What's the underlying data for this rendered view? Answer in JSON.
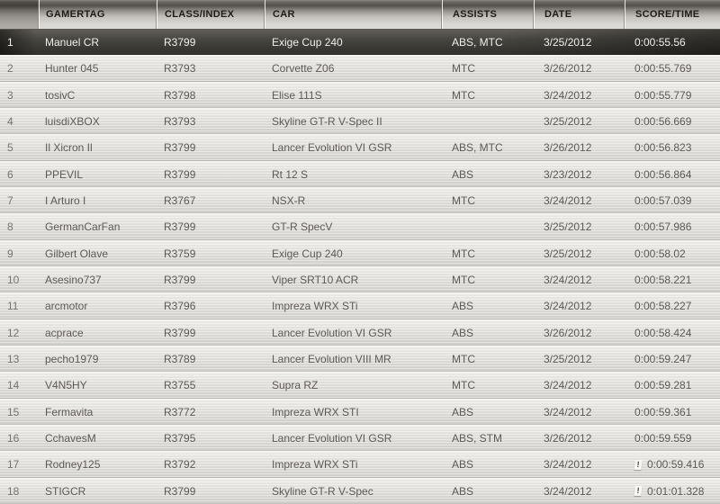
{
  "table": {
    "columns": [
      {
        "key": "rank",
        "label": ""
      },
      {
        "key": "gamertag",
        "label": "GAMERTAG"
      },
      {
        "key": "class_index",
        "label": "CLASS/INDEX"
      },
      {
        "key": "car",
        "label": "CAR"
      },
      {
        "key": "assists",
        "label": "ASSISTS"
      },
      {
        "key": "date",
        "label": "DATE"
      },
      {
        "key": "score",
        "label": "SCORE/TIME"
      }
    ],
    "rows": [
      {
        "rank": "1",
        "gamertag": "Manuel CR",
        "class_index": "R3799",
        "car": "Exige Cup 240",
        "assists": "ABS, MTC",
        "date": "3/25/2012",
        "score": "0:00:55.56",
        "dirty_lap": false,
        "selected": true
      },
      {
        "rank": "2",
        "gamertag": "Hunter 045",
        "class_index": "R3793",
        "car": "Corvette Z06",
        "assists": "MTC",
        "date": "3/26/2012",
        "score": "0:00:55.769",
        "dirty_lap": false,
        "selected": false
      },
      {
        "rank": "3",
        "gamertag": "tosivC",
        "class_index": "R3798",
        "car": "Elise 111S",
        "assists": "MTC",
        "date": "3/24/2012",
        "score": "0:00:55.779",
        "dirty_lap": false,
        "selected": false
      },
      {
        "rank": "4",
        "gamertag": "luisdiXBOX",
        "class_index": "R3793",
        "car": "Skyline GT-R V-Spec II",
        "assists": "",
        "date": "3/25/2012",
        "score": "0:00:56.669",
        "dirty_lap": false,
        "selected": false
      },
      {
        "rank": "5",
        "gamertag": "Il Xicron Il",
        "class_index": "R3799",
        "car": "Lancer Evolution VI GSR",
        "assists": "ABS, MTC",
        "date": "3/26/2012",
        "score": "0:00:56.823",
        "dirty_lap": false,
        "selected": false
      },
      {
        "rank": "6",
        "gamertag": "PPEVIL",
        "class_index": "R3799",
        "car": "Rt 12 S",
        "assists": "ABS",
        "date": "3/23/2012",
        "score": "0:00:56.864",
        "dirty_lap": false,
        "selected": false
      },
      {
        "rank": "7",
        "gamertag": "I Arturo I",
        "class_index": "R3767",
        "car": "NSX-R",
        "assists": "MTC",
        "date": "3/24/2012",
        "score": "0:00:57.039",
        "dirty_lap": false,
        "selected": false
      },
      {
        "rank": "8",
        "gamertag": "GermanCarFan",
        "class_index": "R3799",
        "car": "GT-R SpecV",
        "assists": "",
        "date": "3/25/2012",
        "score": "0:00:57.986",
        "dirty_lap": false,
        "selected": false
      },
      {
        "rank": "9",
        "gamertag": "Gilbert Olave",
        "class_index": "R3759",
        "car": "Exige Cup 240",
        "assists": "MTC",
        "date": "3/25/2012",
        "score": "0:00:58.02",
        "dirty_lap": false,
        "selected": false
      },
      {
        "rank": "10",
        "gamertag": "Asesino737",
        "class_index": "R3799",
        "car": "Viper SRT10 ACR",
        "assists": "MTC",
        "date": "3/24/2012",
        "score": "0:00:58.221",
        "dirty_lap": false,
        "selected": false
      },
      {
        "rank": "11",
        "gamertag": "arcmotor",
        "class_index": "R3796",
        "car": "Impreza WRX STi",
        "assists": "ABS",
        "date": "3/24/2012",
        "score": "0:00:58.227",
        "dirty_lap": false,
        "selected": false
      },
      {
        "rank": "12",
        "gamertag": "acprace",
        "class_index": "R3799",
        "car": "Lancer Evolution VI GSR",
        "assists": "ABS",
        "date": "3/26/2012",
        "score": "0:00:58.424",
        "dirty_lap": false,
        "selected": false
      },
      {
        "rank": "13",
        "gamertag": "pecho1979",
        "class_index": "R3789",
        "car": "Lancer Evolution VIII MR",
        "assists": "MTC",
        "date": "3/25/2012",
        "score": "0:00:59.247",
        "dirty_lap": false,
        "selected": false
      },
      {
        "rank": "14",
        "gamertag": "V4N5HY",
        "class_index": "R3755",
        "car": "Supra RZ",
        "assists": "MTC",
        "date": "3/24/2012",
        "score": "0:00:59.281",
        "dirty_lap": false,
        "selected": false
      },
      {
        "rank": "15",
        "gamertag": "Fermavita",
        "class_index": "R3772",
        "car": "Impreza WRX STI",
        "assists": "ABS",
        "date": "3/24/2012",
        "score": "0:00:59.361",
        "dirty_lap": false,
        "selected": false
      },
      {
        "rank": "16",
        "gamertag": "CchavesM",
        "class_index": "R3795",
        "car": "Lancer Evolution VI GSR",
        "assists": "ABS, STM",
        "date": "3/26/2012",
        "score": "0:00:59.559",
        "dirty_lap": false,
        "selected": false
      },
      {
        "rank": "17",
        "gamertag": "Rodney125",
        "class_index": "R3792",
        "car": "Impreza WRX STi",
        "assists": "ABS",
        "date": "3/24/2012",
        "score": "0:00:59.416",
        "dirty_lap": true,
        "selected": false
      },
      {
        "rank": "18",
        "gamertag": "STIGCR",
        "class_index": "R3799",
        "car": "Skyline GT-R V-Spec",
        "assists": "ABS",
        "date": "3/24/2012",
        "score": "0:01:01.328",
        "dirty_lap": true,
        "selected": false
      }
    ]
  },
  "icons": {
    "dirty_lap_glyph": "!"
  },
  "colors": {
    "selected_row_dark": "#3a3834",
    "header_dark_band": "#54514c",
    "header_light": "#dedcd8",
    "row_light": "#dddbd8",
    "body_text": "#5d5a56",
    "header_text": "#1e1d1b",
    "selected_text": "#efeeec"
  }
}
